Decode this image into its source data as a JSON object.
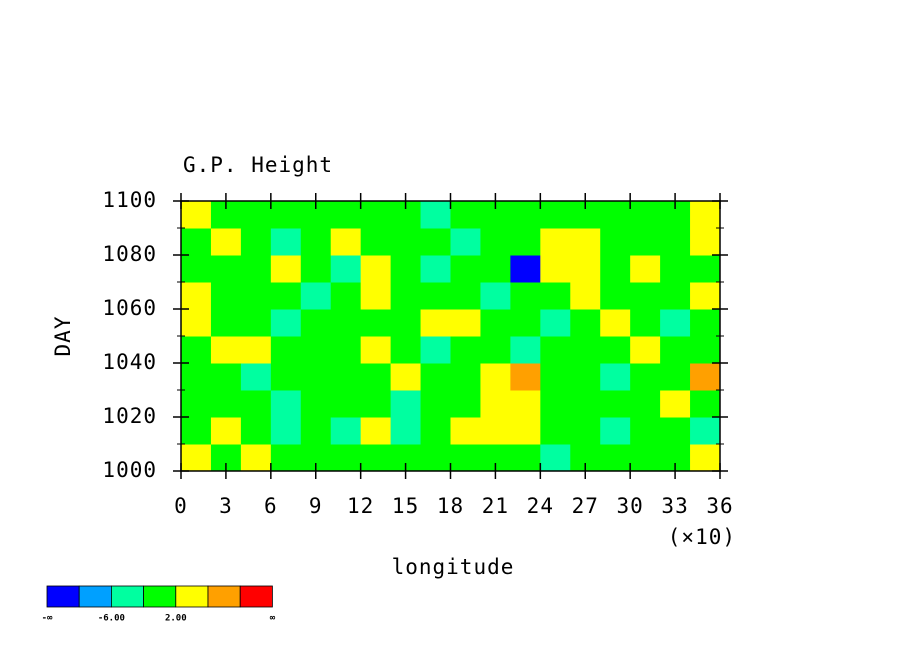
{
  "chart_data": {
    "type": "heatmap",
    "title": "G.P. Height",
    "x_label": "longitude",
    "x_multiplier": "(×10)",
    "y_label": "DAY",
    "xlim": [
      0,
      36
    ],
    "ylim": [
      1000,
      1100
    ],
    "xticks": [
      0,
      3,
      6,
      9,
      12,
      15,
      18,
      21,
      24,
      27,
      30,
      33,
      36
    ],
    "yticks": [
      1000,
      1020,
      1040,
      1060,
      1080,
      1100
    ],
    "y_minor_ticks": [
      1010,
      1030,
      1050,
      1070,
      1090
    ],
    "x": [
      1,
      3,
      5,
      7,
      9,
      11,
      13,
      15,
      17,
      19,
      21,
      23,
      25,
      27,
      29,
      31,
      33,
      35
    ],
    "y": [
      1005,
      1015,
      1025,
      1035,
      1045,
      1055,
      1065,
      1075,
      1085,
      1095
    ],
    "z": [
      [
        4,
        0,
        4,
        0,
        0,
        0,
        0,
        0,
        0,
        0,
        0,
        0,
        -4,
        0,
        0,
        0,
        0,
        4
      ],
      [
        0,
        4,
        0,
        -4,
        0,
        -4,
        4,
        -4,
        0,
        4,
        4,
        4,
        0,
        0,
        -4,
        0,
        0,
        -4
      ],
      [
        0,
        0,
        0,
        -4,
        0,
        0,
        0,
        -4,
        0,
        0,
        4,
        4,
        0,
        0,
        0,
        0,
        4,
        0
      ],
      [
        0,
        0,
        -4,
        0,
        0,
        0,
        0,
        4,
        0,
        0,
        4,
        8,
        0,
        0,
        -4,
        0,
        0,
        8
      ],
      [
        0,
        4,
        4,
        0,
        0,
        0,
        4,
        0,
        -4,
        0,
        0,
        -4,
        0,
        0,
        0,
        4,
        0,
        0
      ],
      [
        4,
        0,
        0,
        -4,
        0,
        0,
        0,
        0,
        4,
        4,
        0,
        0,
        -4,
        0,
        4,
        0,
        -4,
        0
      ],
      [
        4,
        0,
        0,
        0,
        -4,
        0,
        4,
        0,
        0,
        0,
        -4,
        0,
        0,
        4,
        0,
        0,
        0,
        4
      ],
      [
        0,
        0,
        0,
        4,
        0,
        -4,
        4,
        0,
        -4,
        0,
        0,
        -12,
        4,
        4,
        0,
        4,
        0,
        0
      ],
      [
        0,
        4,
        0,
        -4,
        0,
        4,
        0,
        0,
        0,
        -4,
        0,
        0,
        4,
        4,
        0,
        0,
        0,
        4
      ],
      [
        4,
        0,
        0,
        0,
        0,
        0,
        0,
        0,
        -4,
        0,
        0,
        0,
        0,
        0,
        0,
        0,
        0,
        4
      ]
    ],
    "colorbar": {
      "levels": [
        -10,
        -6,
        -2,
        2,
        6,
        10
      ],
      "colors": [
        "#0000ff",
        "#00a0ff",
        "#00ffa0",
        "#00ff00",
        "#ffff00",
        "#ffa000",
        "#ff0000"
      ],
      "label_low": "-∞",
      "label_high": "∞",
      "ticks": [
        {
          "value": -6,
          "label": "-6.00"
        },
        {
          "value": 2,
          "label": "2.00"
        }
      ]
    }
  }
}
